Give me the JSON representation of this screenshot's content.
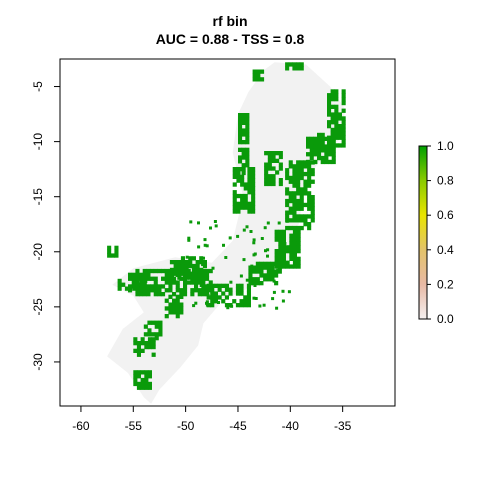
{
  "chart_data": {
    "type": "heatmap",
    "title": "rf bin",
    "subtitle": "AUC = 0.88 - TSS = 0.8",
    "xlabel": "",
    "ylabel": "",
    "xlim": [
      -62,
      -30
    ],
    "ylim": [
      -34,
      -2.5
    ],
    "x_ticks": [
      -60,
      -55,
      -50,
      -45,
      -40,
      -35
    ],
    "y_ticks": [
      -5,
      -10,
      -15,
      -20,
      -25,
      -30
    ],
    "x_tick_labels": [
      "-60",
      "-55",
      "-50",
      "-45",
      "-40",
      "-35"
    ],
    "y_tick_labels": [
      "-5",
      "-10",
      "-15",
      "-20",
      "-25",
      "-30"
    ],
    "values": "binary raster: 1 = presence (green), 0 = absence (light grey)",
    "presence_color": "#0a9a0a",
    "absence_color": "#f2f2f2",
    "presence_regions": [
      {
        "lon": [
          -43.6,
          -42.8
        ],
        "lat": [
          -4.5,
          -3.5
        ]
      },
      {
        "lon": [
          -40.5,
          -39.0
        ],
        "lat": [
          -3.5,
          -2.8
        ]
      },
      {
        "lon": [
          -36.5,
          -34.8
        ],
        "lat": [
          -10.5,
          -5.5
        ]
      },
      {
        "lon": [
          -38.5,
          -36.0
        ],
        "lat": [
          -12.0,
          -9.5
        ]
      },
      {
        "lon": [
          -40.5,
          -38.0
        ],
        "lat": [
          -18.0,
          -12.0
        ]
      },
      {
        "lon": [
          -41.5,
          -39.2
        ],
        "lat": [
          -21.5,
          -18.0
        ]
      },
      {
        "lon": [
          -44.0,
          -41.0
        ],
        "lat": [
          -23.0,
          -21.0
        ]
      },
      {
        "lon": [
          -45.0,
          -44.0
        ],
        "lat": [
          -13.0,
          -7.5
        ]
      },
      {
        "lon": [
          -45.5,
          -43.5
        ],
        "lat": [
          -16.5,
          -12.5
        ]
      },
      {
        "lon": [
          -42.5,
          -41.0
        ],
        "lat": [
          -14.0,
          -11.0
        ]
      },
      {
        "lon": [
          -55.5,
          -47.5
        ],
        "lat": [
          -24.0,
          -21.8
        ]
      },
      {
        "lon": [
          -51.5,
          -48.0
        ],
        "lat": [
          -22.5,
          -20.5
        ]
      },
      {
        "lon": [
          -56.5,
          -54.0
        ],
        "lat": [
          -23.5,
          -22.5
        ]
      },
      {
        "lon": [
          -48.0,
          -44.0
        ],
        "lat": [
          -25.0,
          -23.0
        ]
      },
      {
        "lon": [
          -55.0,
          -53.0
        ],
        "lat": [
          -29.5,
          -28.0
        ]
      },
      {
        "lon": [
          -54.0,
          -52.5
        ],
        "lat": [
          -28.0,
          -26.5
        ]
      },
      {
        "lon": [
          -55.0,
          -53.5
        ],
        "lat": [
          -32.5,
          -31.0
        ]
      },
      {
        "lon": [
          -52.0,
          -50.5
        ],
        "lat": [
          -26.0,
          -24.0
        ]
      },
      {
        "lon": [
          -57.5,
          -56.5
        ],
        "lat": [
          -20.5,
          -19.5
        ]
      }
    ],
    "colorbar": {
      "range": [
        0.0,
        1.0
      ],
      "tick_labels": [
        "0.0",
        "0.2",
        "0.4",
        "0.6",
        "0.8",
        "1.0"
      ],
      "colors": [
        "#f4f0f0",
        "#e8b9a5",
        "#e3c36a",
        "#e9e400",
        "#8acb00",
        "#00a000"
      ]
    },
    "grid": false,
    "legend": "right"
  }
}
